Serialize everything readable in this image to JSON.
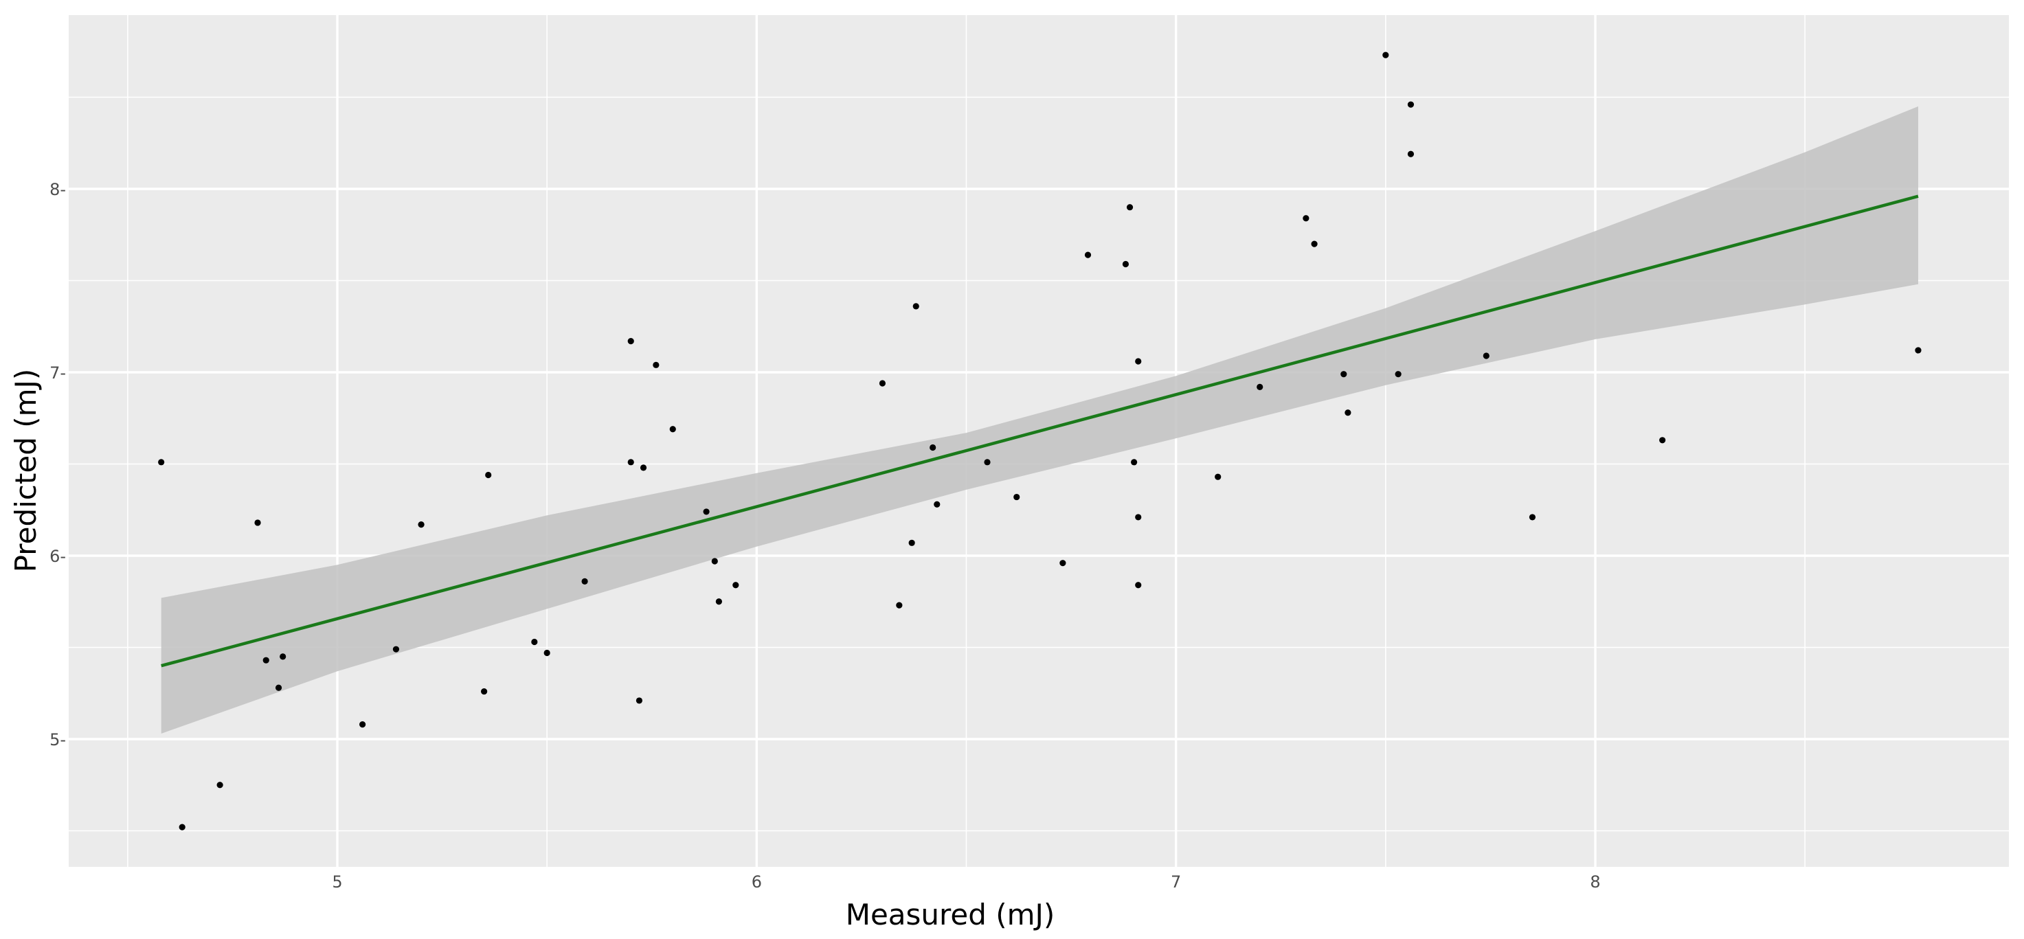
{
  "chart_data": {
    "type": "scatter",
    "title": "",
    "xlabel": "Measured (mJ)",
    "ylabel": "Predicted (mJ)",
    "xlim": [
      4.5,
      8.9
    ],
    "ylim": [
      4.4,
      8.9
    ],
    "x_ticks": [
      5,
      6,
      7,
      8
    ],
    "y_ticks": [
      5,
      6,
      7,
      8
    ],
    "x_tick_labels": [
      "5",
      "6",
      "7",
      "8"
    ],
    "y_tick_labels": [
      "5-",
      "6-",
      "7-",
      "8-"
    ],
    "grid": true,
    "legend": "none",
    "colors": {
      "panel_background": "#ebebeb",
      "grid": "#ffffff",
      "points": "#000000",
      "fit_line": "#1a7a1a",
      "confidence_band": "#c2c2c2"
    },
    "points": [
      [
        4.58,
        6.51
      ],
      [
        4.63,
        4.52
      ],
      [
        4.72,
        4.75
      ],
      [
        4.81,
        6.18
      ],
      [
        4.83,
        5.43
      ],
      [
        4.86,
        5.28
      ],
      [
        4.87,
        5.45
      ],
      [
        5.06,
        5.08
      ],
      [
        5.14,
        5.49
      ],
      [
        5.2,
        6.17
      ],
      [
        5.35,
        5.26
      ],
      [
        5.36,
        6.44
      ],
      [
        5.47,
        5.53
      ],
      [
        5.5,
        5.47
      ],
      [
        5.59,
        5.86
      ],
      [
        5.7,
        7.17
      ],
      [
        5.7,
        6.51
      ],
      [
        5.72,
        5.21
      ],
      [
        5.73,
        6.48
      ],
      [
        5.76,
        7.04
      ],
      [
        5.8,
        6.69
      ],
      [
        5.88,
        6.24
      ],
      [
        5.9,
        5.97
      ],
      [
        5.91,
        5.75
      ],
      [
        5.95,
        5.84
      ],
      [
        6.3,
        6.94
      ],
      [
        6.34,
        5.73
      ],
      [
        6.37,
        6.07
      ],
      [
        6.38,
        7.36
      ],
      [
        6.42,
        6.59
      ],
      [
        6.43,
        6.28
      ],
      [
        6.55,
        6.51
      ],
      [
        6.62,
        6.32
      ],
      [
        6.73,
        5.96
      ],
      [
        6.79,
        7.64
      ],
      [
        6.88,
        7.59
      ],
      [
        6.89,
        7.9
      ],
      [
        6.9,
        6.51
      ],
      [
        6.91,
        7.06
      ],
      [
        6.91,
        6.21
      ],
      [
        6.91,
        5.84
      ],
      [
        7.1,
        6.43
      ],
      [
        7.2,
        6.92
      ],
      [
        7.31,
        7.84
      ],
      [
        7.33,
        7.7
      ],
      [
        7.4,
        6.99
      ],
      [
        7.41,
        6.78
      ],
      [
        7.5,
        8.73
      ],
      [
        7.53,
        6.99
      ],
      [
        7.56,
        8.46
      ],
      [
        7.56,
        8.19
      ],
      [
        7.74,
        7.09
      ],
      [
        7.85,
        6.21
      ],
      [
        8.16,
        6.63
      ],
      [
        8.77,
        7.12
      ]
    ],
    "fit_line": {
      "x": [
        4.58,
        8.77
      ],
      "y": [
        5.4,
        7.96
      ]
    },
    "confidence_band": {
      "x": [
        4.58,
        5.0,
        5.5,
        6.0,
        6.5,
        7.0,
        7.5,
        8.0,
        8.5,
        8.77
      ],
      "upper": [
        5.77,
        5.95,
        6.22,
        6.45,
        6.67,
        6.98,
        7.35,
        7.77,
        8.2,
        8.45
      ],
      "lower": [
        5.03,
        5.37,
        5.71,
        6.05,
        6.36,
        6.64,
        6.93,
        7.18,
        7.37,
        7.48
      ]
    }
  }
}
